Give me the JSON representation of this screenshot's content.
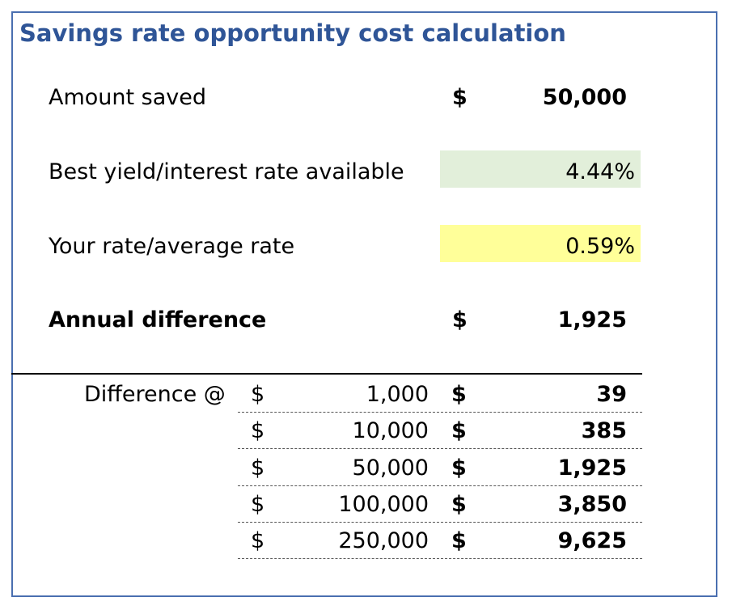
{
  "title": "Savings rate opportunity cost calculation",
  "colors": {
    "title": "#2f5597",
    "best_rate_fill": "#e2efda",
    "your_rate_fill": "#ffff99",
    "frame": "#4a6fb0"
  },
  "amount_saved": {
    "label": "Amount saved",
    "currency": "$",
    "value": "50,000"
  },
  "best_rate": {
    "label": "Best yield/interest rate available",
    "value": "4.44%"
  },
  "your_rate": {
    "label": "Your rate/average rate",
    "value": "0.59%"
  },
  "annual_difference": {
    "label": "Annual difference",
    "currency": "$",
    "value": "1,925"
  },
  "difference_table": {
    "label": "Difference @",
    "rows": [
      {
        "currency": "$",
        "amount": "1,000",
        "result_currency": "$",
        "result": "39"
      },
      {
        "currency": "$",
        "amount": "10,000",
        "result_currency": "$",
        "result": "385"
      },
      {
        "currency": "$",
        "amount": "50,000",
        "result_currency": "$",
        "result": "1,925"
      },
      {
        "currency": "$",
        "amount": "100,000",
        "result_currency": "$",
        "result": "3,850"
      },
      {
        "currency": "$",
        "amount": "250,000",
        "result_currency": "$",
        "result": "9,625"
      }
    ]
  }
}
